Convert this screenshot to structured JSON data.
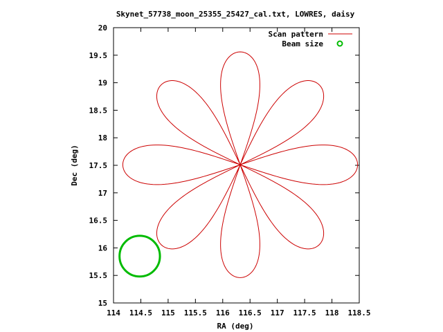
{
  "chart_data": {
    "type": "line",
    "title": "Skynet_57738_moon_25355_25427_cal.txt, LOWRES, daisy",
    "xlabel": "RA (deg)",
    "ylabel": "Dec (deg)",
    "xlim": [
      114,
      118.5
    ],
    "ylim": [
      15,
      20
    ],
    "xticks": [
      114,
      114.5,
      115,
      115.5,
      116,
      116.5,
      117,
      117.5,
      118,
      118.5
    ],
    "xtick_labels": [
      "114",
      "114.5",
      "115",
      "115.5",
      "116",
      "116.5",
      "117",
      "117.5",
      "118",
      "118.5"
    ],
    "yticks": [
      15,
      15.5,
      16,
      16.5,
      17,
      17.5,
      18,
      18.5,
      19,
      19.5,
      20
    ],
    "ytick_labels": [
      "15",
      "15.5",
      "16",
      "16.5",
      "17",
      "17.5",
      "18",
      "18.5",
      "19",
      "19.5",
      "20"
    ],
    "grid": false,
    "legend_position": "top-right",
    "series": [
      {
        "name": "Scan pattern",
        "kind": "daisy",
        "color": "#cc0000",
        "center": [
          116.32,
          17.51
        ],
        "petals": 8,
        "lobe_angles_deg": [
          90,
          45,
          0,
          -45,
          -90,
          -135,
          180,
          135
        ],
        "lobe_extent_deg": [
          2.05,
          2.05,
          2.15,
          2.05,
          2.05,
          2.05,
          2.15,
          2.05
        ],
        "lobe_halfwidth_deg": 0.36
      },
      {
        "name": "Beam size",
        "kind": "circle",
        "color": "#00bb00",
        "center": [
          114.48,
          15.85
        ],
        "radius_ra_deg": 0.37,
        "radius_dec_deg": 0.37
      }
    ]
  }
}
